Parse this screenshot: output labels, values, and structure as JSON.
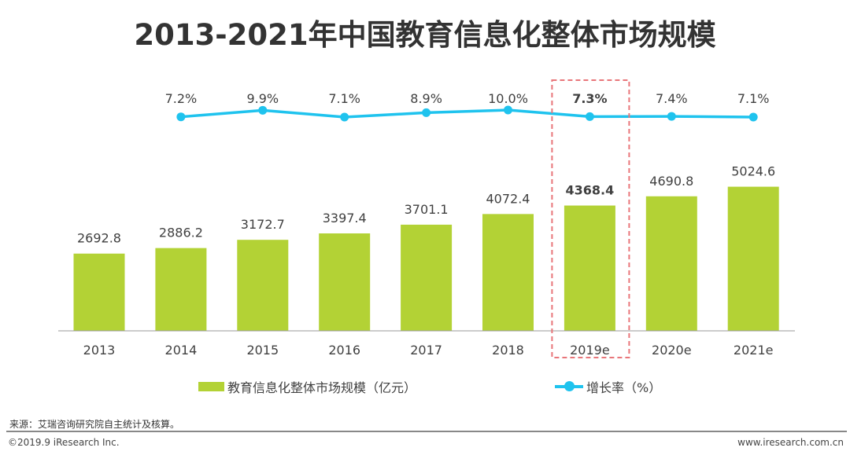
{
  "chart_data": {
    "type": "bar",
    "title": "2013-2021年中国教育信息化整体市场规模",
    "categories": [
      "2013",
      "2014",
      "2015",
      "2016",
      "2017",
      "2018",
      "2019e",
      "2020e",
      "2021e"
    ],
    "series": [
      {
        "name": "教育信息化整体市场规模（亿元）",
        "type": "bar",
        "color": "#b3d235",
        "values": [
          2692.8,
          2886.2,
          3172.7,
          3397.4,
          3701.1,
          4072.4,
          4368.4,
          4690.8,
          5024.6
        ]
      },
      {
        "name": "增长率（%）",
        "type": "line",
        "color": "#1fc3ee",
        "values": [
          null,
          7.2,
          9.9,
          7.1,
          8.9,
          10.0,
          7.3,
          7.4,
          7.1
        ]
      }
    ],
    "highlight": {
      "category": "2019e",
      "box_color": "#e8767a"
    },
    "legend_position": "bottom",
    "grid": false
  },
  "footer": {
    "source": "来源：艾瑞咨询研究院自主统计及核算。",
    "copyright": "©2019.9 iResearch Inc.",
    "website": "www.iresearch.com.cn"
  }
}
